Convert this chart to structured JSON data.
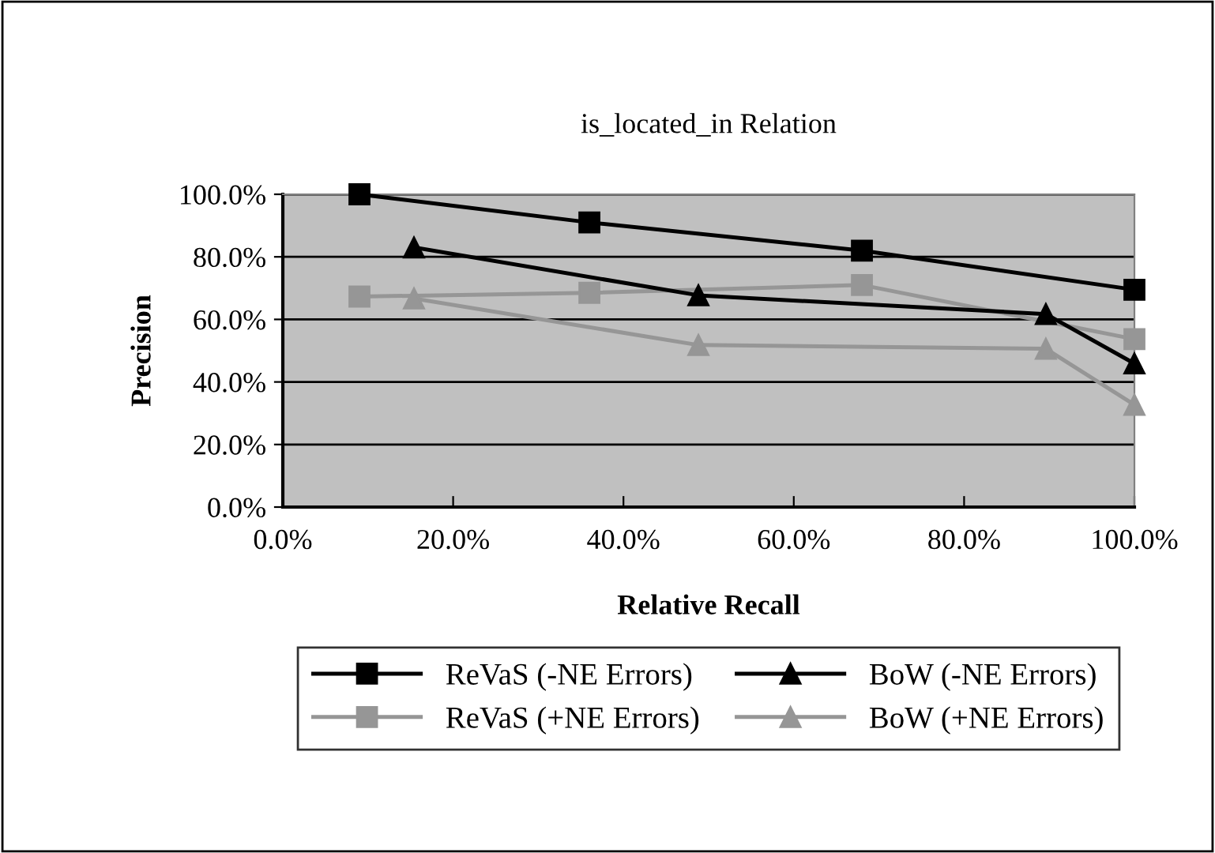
{
  "chart_data": {
    "type": "line",
    "title": "is_located_in Relation",
    "xlabel": "Relative Recall",
    "ylabel": "Precision",
    "xlim": [
      0,
      100
    ],
    "ylim": [
      0,
      100
    ],
    "xticks": [
      {
        "value": 0,
        "label": "0.0%"
      },
      {
        "value": 20,
        "label": "20.0%"
      },
      {
        "value": 40,
        "label": "40.0%"
      },
      {
        "value": 60,
        "label": "60.0%"
      },
      {
        "value": 80,
        "label": "80.0%"
      },
      {
        "value": 100,
        "label": "100.0%"
      }
    ],
    "yticks": [
      {
        "value": 0,
        "label": "0.0%"
      },
      {
        "value": 20,
        "label": "20.0%"
      },
      {
        "value": 40,
        "label": "40.0%"
      },
      {
        "value": 60,
        "label": "60.0%"
      },
      {
        "value": 80,
        "label": "80.0%"
      },
      {
        "value": 100,
        "label": "100.0%"
      }
    ],
    "grid": "y",
    "legend": "bottom",
    "line_style": "solid",
    "series": [
      {
        "name": "ReVaS (-NE Errors)",
        "color": "#000000",
        "marker": "square",
        "x": [
          9,
          36,
          68,
          100
        ],
        "values": [
          100,
          91,
          82,
          69.5
        ]
      },
      {
        "name": "ReVaS (+NE Errors)",
        "color": "#969696",
        "marker": "square",
        "x": [
          9,
          36,
          68,
          100
        ],
        "values": [
          67.3,
          68.5,
          71,
          53.7
        ]
      },
      {
        "name": "BoW (-NE Errors)",
        "color": "#000000",
        "marker": "triangle",
        "x": [
          15.4,
          48.8,
          89.6,
          100
        ],
        "values": [
          83,
          67.7,
          61.7,
          45.9
        ]
      },
      {
        "name": "BoW (+NE Errors)",
        "color": "#969696",
        "marker": "triangle",
        "x": [
          15.4,
          48.8,
          89.6,
          100
        ],
        "values": [
          66.7,
          51.8,
          50.6,
          32.7
        ]
      }
    ]
  }
}
